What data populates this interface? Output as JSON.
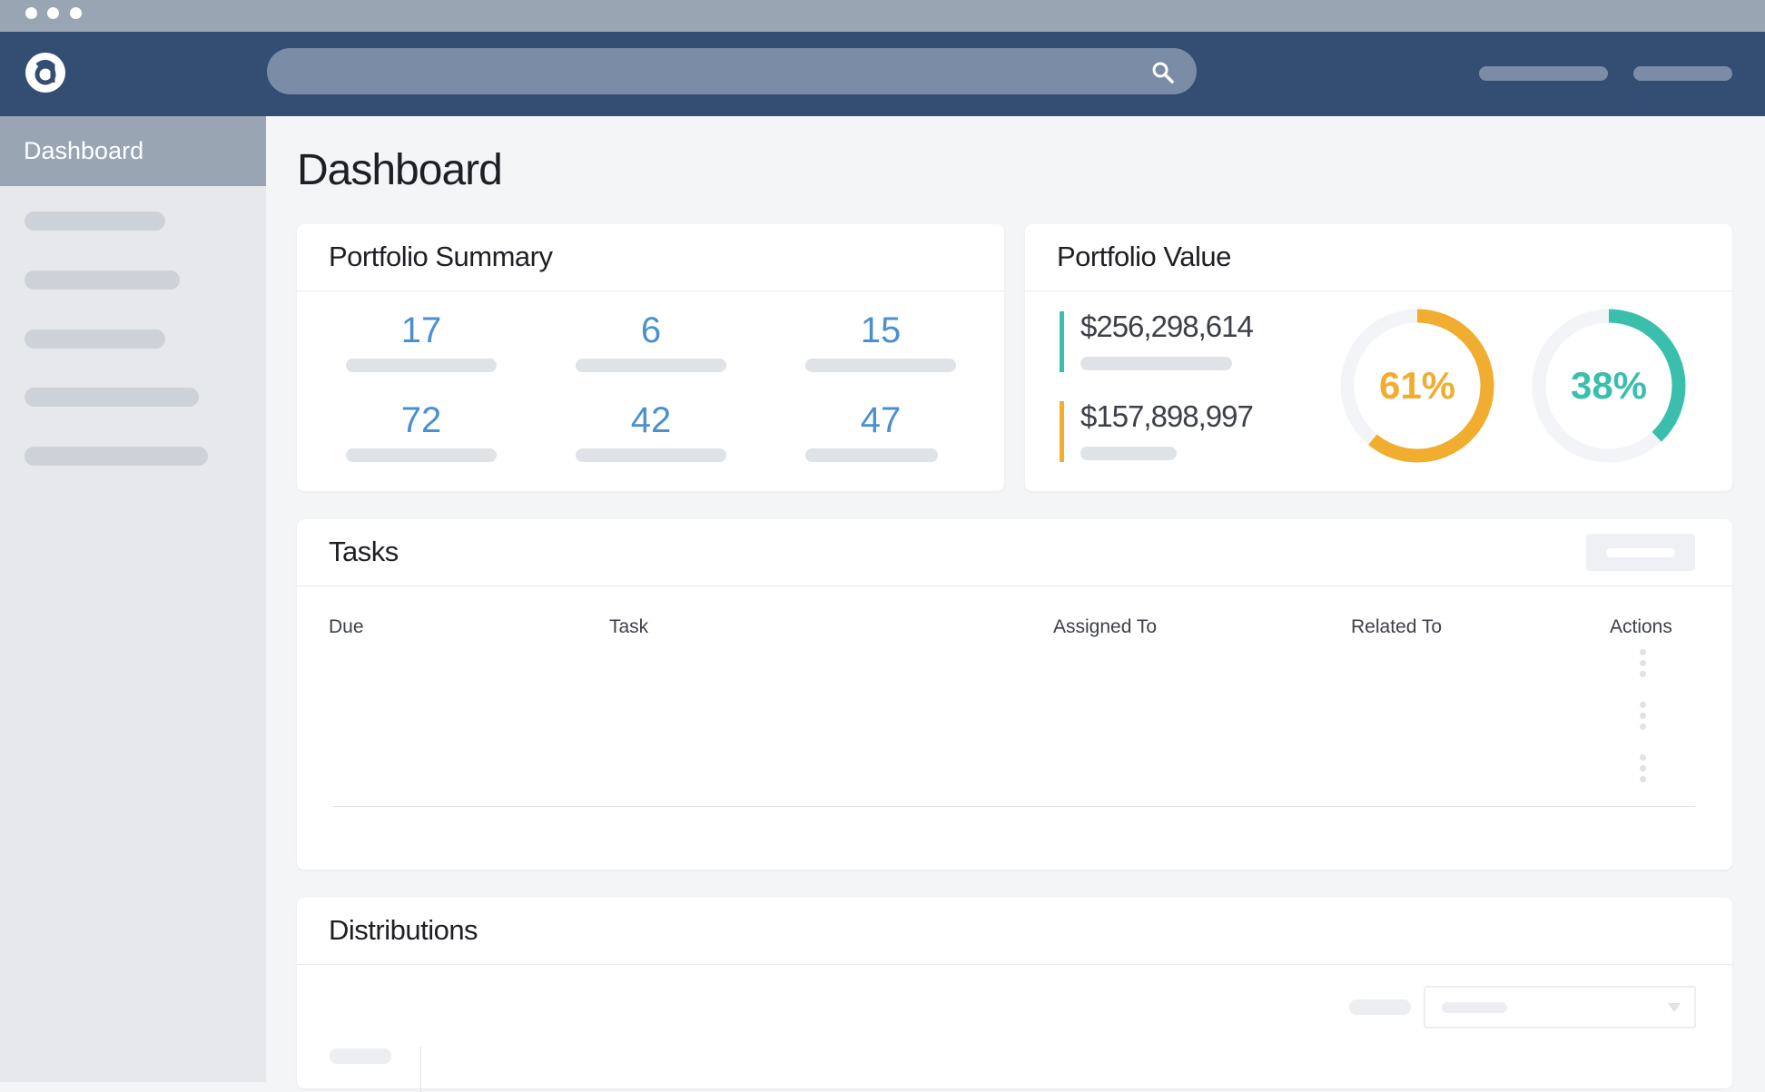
{
  "sidebar": {
    "active_item": "Dashboard"
  },
  "page_title": "Dashboard",
  "portfolio_summary": {
    "title": "Portfolio Summary",
    "values": [
      17,
      6,
      15,
      72,
      42,
      47
    ]
  },
  "portfolio_value": {
    "title": "Portfolio Value",
    "amounts": [
      {
        "label": "$256,298,614",
        "color": "#3bbfad"
      },
      {
        "label": "$157,898,997",
        "color": "#f0ad30"
      }
    ],
    "donuts": [
      {
        "value": 61,
        "label": "61%",
        "color": "#f0ad30"
      },
      {
        "value": 38,
        "label": "38%",
        "color": "#3bbfad"
      }
    ]
  },
  "tasks": {
    "title": "Tasks",
    "columns": [
      "Due",
      "Task",
      "Assigned To",
      "Related To",
      "Actions"
    ]
  },
  "distributions": {
    "title": "Distributions"
  }
}
